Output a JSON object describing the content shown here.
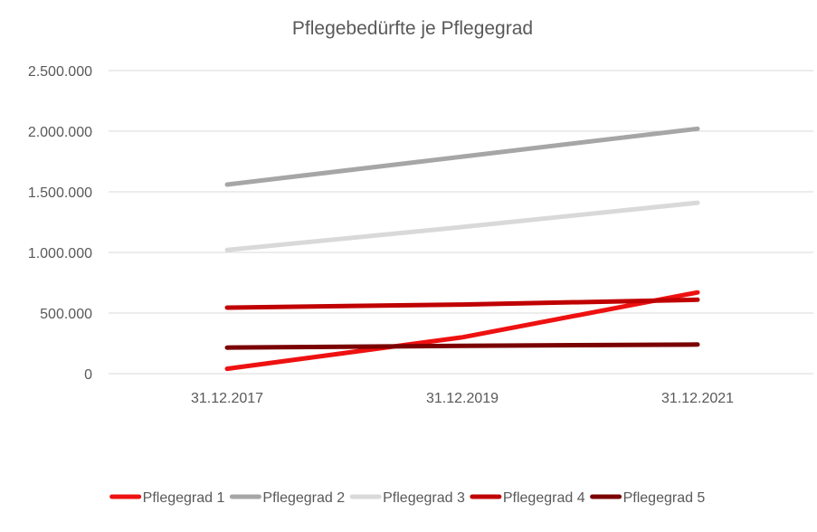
{
  "chart_data": {
    "type": "line",
    "title": "Pflegebedürfte je Pflegegrad",
    "categories": [
      "31.12.2017",
      "31.12.2019",
      "31.12.2021"
    ],
    "ylim": [
      0,
      2500000
    ],
    "yticks": [
      {
        "value": 0,
        "label": "0"
      },
      {
        "value": 500000,
        "label": "500.000"
      },
      {
        "value": 1000000,
        "label": "1.000.000"
      },
      {
        "value": 1500000,
        "label": "1.500.000"
      },
      {
        "value": 2000000,
        "label": "2.000.000"
      },
      {
        "value": 2500000,
        "label": "2.500.000"
      }
    ],
    "grid": true,
    "legend_position": "bottom",
    "series": [
      {
        "name": "Pflegegrad 1",
        "color": "#ee1111",
        "values": [
          40000,
          300000,
          670000
        ]
      },
      {
        "name": "Pflegegrad 2",
        "color": "#a6a6a6",
        "values": [
          1560000,
          1790000,
          2020000
        ]
      },
      {
        "name": "Pflegegrad 3",
        "color": "#d9d9d9",
        "values": [
          1020000,
          1210000,
          1410000
        ]
      },
      {
        "name": "Pflegegrad 4",
        "color": "#c00000",
        "values": [
          545000,
          570000,
          610000
        ]
      },
      {
        "name": "Pflegegrad 5",
        "color": "#7b0000",
        "values": [
          215000,
          230000,
          240000
        ]
      }
    ]
  }
}
